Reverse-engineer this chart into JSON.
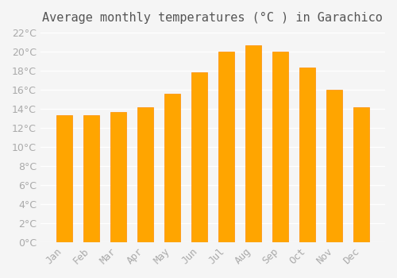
{
  "title": "Average monthly temperatures (°C ) in Garachico",
  "months": [
    "Jan",
    "Feb",
    "Mar",
    "Apr",
    "May",
    "Jun",
    "Jul",
    "Aug",
    "Sep",
    "Oct",
    "Nov",
    "Dec"
  ],
  "temperatures": [
    13.3,
    13.3,
    13.7,
    14.2,
    15.6,
    17.8,
    20.0,
    20.7,
    20.0,
    18.3,
    16.0,
    14.2
  ],
  "bar_color": "#FFA500",
  "bar_edge_color": "#FF8C00",
  "ylim": [
    0,
    22
  ],
  "yticks": [
    0,
    2,
    4,
    6,
    8,
    10,
    12,
    14,
    16,
    18,
    20,
    22
  ],
  "background_color": "#f5f5f5",
  "grid_color": "#ffffff",
  "title_fontsize": 11,
  "tick_fontsize": 9
}
